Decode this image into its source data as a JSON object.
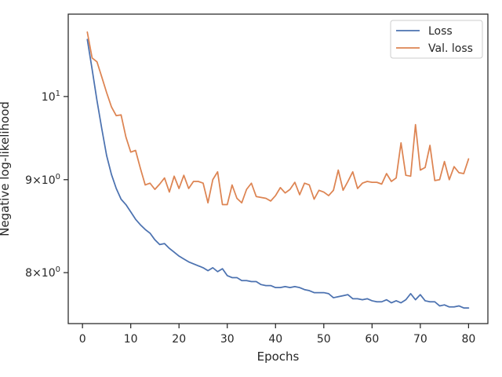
{
  "chart_data": {
    "type": "line",
    "title": "",
    "xlabel": "Epochs",
    "ylabel": "Negative log-likelihood",
    "yscale": "log",
    "xlim": [
      -2.95,
      84
    ],
    "ylim": [
      7.5,
      11.1
    ],
    "grid": false,
    "legend_position": "top-right",
    "x_ticks": [
      {
        "value": 0,
        "label": "0"
      },
      {
        "value": 10,
        "label": "10"
      },
      {
        "value": 20,
        "label": "20"
      },
      {
        "value": 30,
        "label": "30"
      },
      {
        "value": 40,
        "label": "40"
      },
      {
        "value": 50,
        "label": "50"
      },
      {
        "value": 60,
        "label": "60"
      },
      {
        "value": 70,
        "label": "70"
      },
      {
        "value": 80,
        "label": "80"
      }
    ],
    "y_ticks": [
      {
        "value": 8,
        "label_base": "8",
        "label_times": "×",
        "label_exp_base": "10",
        "label_exp": "0"
      },
      {
        "value": 9,
        "label_base": "9",
        "label_times": "×",
        "label_exp_base": "10",
        "label_exp": "0"
      },
      {
        "value": 10,
        "label_base": "",
        "label_times": "",
        "label_exp_base": "10",
        "label_exp": "1"
      }
    ],
    "x": [
      1,
      2,
      3,
      4,
      5,
      6,
      7,
      8,
      9,
      10,
      11,
      12,
      13,
      14,
      15,
      16,
      17,
      18,
      19,
      20,
      21,
      22,
      23,
      24,
      25,
      26,
      27,
      28,
      29,
      30,
      31,
      32,
      33,
      34,
      35,
      36,
      37,
      38,
      39,
      40,
      41,
      42,
      43,
      44,
      45,
      46,
      47,
      48,
      49,
      50,
      51,
      52,
      53,
      54,
      55,
      56,
      57,
      58,
      59,
      60,
      61,
      62,
      63,
      64,
      65,
      66,
      67,
      68,
      69,
      70,
      71,
      72,
      73,
      74,
      75,
      76,
      77,
      78,
      79,
      80
    ],
    "series": [
      {
        "name": "Loss",
        "color": "#4c72b0",
        "values": [
          10.75,
          10.35,
          9.95,
          9.6,
          9.28,
          9.06,
          8.9,
          8.78,
          8.72,
          8.64,
          8.56,
          8.5,
          8.45,
          8.41,
          8.34,
          8.29,
          8.3,
          8.25,
          8.21,
          8.17,
          8.14,
          8.11,
          8.09,
          8.07,
          8.05,
          8.02,
          8.05,
          8.01,
          8.04,
          7.97,
          7.95,
          7.95,
          7.92,
          7.92,
          7.91,
          7.91,
          7.88,
          7.87,
          7.87,
          7.85,
          7.85,
          7.86,
          7.85,
          7.86,
          7.85,
          7.83,
          7.82,
          7.8,
          7.8,
          7.8,
          7.79,
          7.75,
          7.76,
          7.77,
          7.78,
          7.74,
          7.74,
          7.73,
          7.74,
          7.72,
          7.71,
          7.71,
          7.73,
          7.7,
          7.72,
          7.7,
          7.73,
          7.79,
          7.73,
          7.78,
          7.72,
          7.71,
          7.71,
          7.67,
          7.68,
          7.66,
          7.66,
          7.67,
          7.65,
          7.65
        ]
      },
      {
        "name": "Val. loss",
        "color": "#dd8452",
        "values": [
          10.85,
          10.5,
          10.45,
          10.25,
          10.05,
          9.87,
          9.76,
          9.77,
          9.5,
          9.32,
          9.34,
          9.13,
          8.94,
          8.96,
          8.89,
          8.95,
          9.02,
          8.86,
          9.04,
          8.9,
          9.05,
          8.9,
          8.98,
          8.98,
          8.96,
          8.74,
          9.0,
          9.09,
          8.72,
          8.72,
          8.94,
          8.79,
          8.74,
          8.89,
          8.96,
          8.81,
          8.8,
          8.79,
          8.76,
          8.82,
          8.91,
          8.85,
          8.89,
          8.97,
          8.83,
          8.96,
          8.94,
          8.78,
          8.88,
          8.86,
          8.82,
          8.88,
          9.11,
          8.88,
          8.98,
          9.09,
          8.9,
          8.96,
          8.98,
          8.97,
          8.97,
          8.95,
          9.07,
          8.98,
          9.02,
          9.43,
          9.05,
          9.04,
          9.65,
          9.11,
          9.14,
          9.4,
          8.99,
          9.0,
          9.21,
          9.0,
          9.15,
          9.08,
          9.07,
          9.24
        ]
      }
    ]
  }
}
